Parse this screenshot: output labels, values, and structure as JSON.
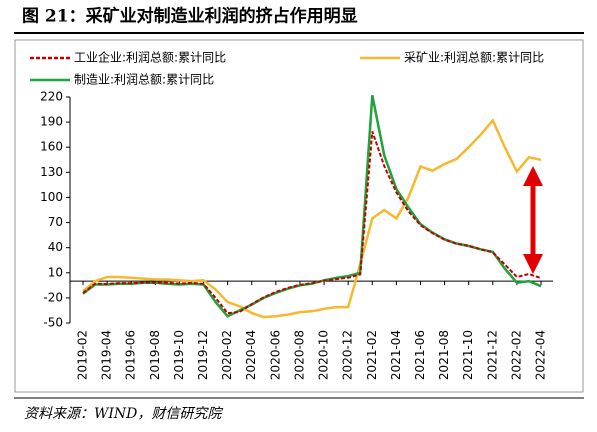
{
  "chart_data": {
    "type": "line",
    "title": "图 21：采矿业对制造业利润的挤占作用明显",
    "source": "资料来源：WIND，财信研究院",
    "categories": [
      "2019-02",
      null,
      "2019-04",
      null,
      "2019-06",
      null,
      "2019-08",
      null,
      "2019-10",
      null,
      "2019-12",
      null,
      "2020-02",
      null,
      "2020-04",
      null,
      "2020-06",
      null,
      "2020-08",
      null,
      "2020-10",
      null,
      "2020-12",
      null,
      "2021-02",
      null,
      "2021-04",
      null,
      "2021-06",
      null,
      "2021-08",
      null,
      "2021-10",
      null,
      "2021-12",
      null,
      "2022-02",
      null,
      "2022-04"
    ],
    "series": [
      {
        "name": "工业企业:利润总额:累计同比",
        "color": "#c00000",
        "dash": true,
        "values": [
          -14,
          -3,
          -3.4,
          -2.3,
          -2.4,
          -1.7,
          -1.7,
          -2.1,
          -2.9,
          -2.1,
          -3.3,
          -20,
          -38.3,
          -36.7,
          -27.4,
          -19.3,
          -12.8,
          -8.1,
          -4.4,
          -2.4,
          0.7,
          2.4,
          4.1,
          8,
          178.9,
          137.3,
          106,
          83.4,
          66.9,
          57.3,
          49.5,
          44.7,
          42.2,
          38,
          34.3,
          20,
          5,
          8.5,
          3.5
        ]
      },
      {
        "name": "采矿业:利润总额:累计同比",
        "color": "#f5b82e",
        "dash": false,
        "values": [
          -12,
          0,
          5,
          5,
          4,
          3,
          2,
          2,
          1,
          0,
          1,
          -10,
          -25,
          -30,
          -38,
          -43,
          -42,
          -40,
          -37,
          -36,
          -33,
          -31,
          -31,
          20,
          75,
          85,
          75,
          100,
          137,
          132,
          140,
          146,
          160,
          175,
          192,
          160,
          131,
          148,
          145
        ]
      },
      {
        "name": "制造业:利润总额:累计同比",
        "color": "#1fa33b",
        "dash": false,
        "values": [
          -15,
          -4,
          -4,
          -3,
          -3,
          -2,
          -2,
          -3,
          -4,
          -3,
          -4,
          -25,
          -42,
          -35,
          -28,
          -20,
          -14,
          -9,
          -5,
          -3,
          1,
          4,
          6,
          10,
          222,
          150,
          110,
          88,
          68,
          58,
          50,
          45,
          42,
          38,
          35,
          15,
          -2,
          0,
          -6
        ]
      }
    ],
    "ylim": [
      -50,
      220
    ],
    "yticks": [
      -50,
      -20,
      10,
      40,
      70,
      100,
      130,
      160,
      190,
      220
    ]
  }
}
